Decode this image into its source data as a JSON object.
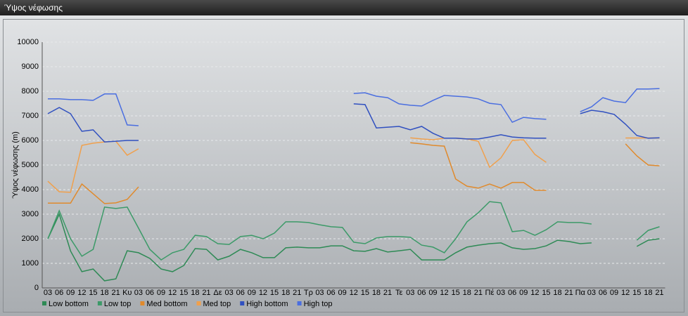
{
  "chart_data": {
    "type": "line",
    "title": "Ύψος νέφωσης",
    "y_label": "Ύψος νέφωσης (m)",
    "categories": [
      "03",
      "06",
      "09",
      "12",
      "15",
      "18",
      "21",
      "Κυ",
      "03",
      "06",
      "09",
      "12",
      "15",
      "18",
      "21",
      "Δε",
      "03",
      "06",
      "09",
      "12",
      "15",
      "18",
      "21",
      "Τρ",
      "03",
      "06",
      "09",
      "12",
      "15",
      "18",
      "21",
      "Τε",
      "03",
      "06",
      "09",
      "12",
      "15",
      "18",
      "21",
      "Πέ",
      "03",
      "06",
      "09",
      "12",
      "15",
      "18",
      "21",
      "Πα",
      "03",
      "06",
      "09",
      "12",
      "15",
      "18",
      "21"
    ],
    "ylim": [
      0,
      10000
    ],
    "yticks": [
      0,
      1000,
      2000,
      3000,
      4000,
      5000,
      6000,
      7000,
      8000,
      9000,
      10000
    ],
    "grid": true,
    "legend": "bottom",
    "series": [
      {
        "name": "Low bottom",
        "color": "#2e8a55",
        "values": [
          2000,
          3000,
          1500,
          660,
          770,
          290,
          370,
          1510,
          1430,
          1200,
          770,
          660,
          910,
          1600,
          1570,
          1140,
          1290,
          1570,
          1430,
          1230,
          1230,
          1630,
          1660,
          1630,
          1630,
          1710,
          1710,
          1510,
          1490,
          1600,
          1460,
          1510,
          1570,
          1140,
          1140,
          1140,
          1430,
          1660,
          1740,
          1800,
          1830,
          1630,
          1570,
          1600,
          1710,
          1940,
          1890,
          1800,
          1830,
          null,
          null,
          null,
          1690,
          1940,
          2000
        ]
      },
      {
        "name": "Low top",
        "color": "#3c9a68",
        "values": [
          2000,
          3140,
          2000,
          1290,
          1570,
          3290,
          3230,
          3290,
          2430,
          1570,
          1140,
          1430,
          1570,
          2140,
          2090,
          1800,
          1770,
          2090,
          2140,
          2000,
          2230,
          2690,
          2690,
          2660,
          2570,
          2490,
          2460,
          1860,
          1800,
          2030,
          2090,
          2090,
          2060,
          1740,
          1660,
          1430,
          2000,
          2690,
          3060,
          3510,
          3460,
          2290,
          2340,
          2140,
          2370,
          2690,
          2660,
          2660,
          2600,
          null,
          null,
          null,
          1940,
          2340,
          2490
        ]
      },
      {
        "name": "Med bottom",
        "color": "#e08a2c",
        "values": [
          3450,
          3450,
          3450,
          4230,
          3830,
          3430,
          3460,
          3600,
          4110,
          null,
          null,
          null,
          null,
          null,
          null,
          null,
          null,
          null,
          null,
          null,
          null,
          null,
          null,
          null,
          null,
          null,
          null,
          null,
          null,
          null,
          null,
          null,
          5910,
          5860,
          5800,
          5770,
          4430,
          4140,
          4060,
          4230,
          4060,
          4290,
          4290,
          3970,
          3970,
          null,
          null,
          null,
          null,
          null,
          null,
          5860,
          5370,
          5000,
          4970
        ]
      },
      {
        "name": "Med top",
        "color": "#f0a04c",
        "values": [
          4340,
          3910,
          3890,
          5800,
          5890,
          5940,
          5970,
          5400,
          5660,
          null,
          null,
          null,
          null,
          null,
          null,
          null,
          null,
          null,
          null,
          null,
          null,
          null,
          null,
          null,
          null,
          null,
          null,
          null,
          null,
          null,
          null,
          null,
          6110,
          6060,
          6030,
          6090,
          6090,
          6060,
          5970,
          4910,
          5290,
          6000,
          6030,
          5430,
          5110,
          null,
          null,
          null,
          null,
          null,
          null,
          6100,
          6100,
          6100,
          6100
        ]
      },
      {
        "name": "High bottom",
        "color": "#3050c0",
        "values": [
          7090,
          7340,
          7090,
          6370,
          6430,
          5940,
          5970,
          6000,
          6000,
          null,
          null,
          null,
          null,
          null,
          null,
          null,
          null,
          null,
          null,
          null,
          null,
          null,
          null,
          null,
          null,
          null,
          null,
          7490,
          7460,
          6510,
          6540,
          6570,
          6430,
          6570,
          6290,
          6090,
          6090,
          6060,
          6060,
          6140,
          6230,
          6140,
          6110,
          6090,
          6090,
          null,
          null,
          7090,
          7230,
          7170,
          7060,
          6660,
          6200,
          6090,
          6110
        ]
      },
      {
        "name": "High top",
        "color": "#4a6ee0",
        "values": [
          7690,
          7690,
          7660,
          7660,
          7630,
          7890,
          7890,
          6630,
          6600,
          null,
          null,
          null,
          null,
          null,
          null,
          null,
          null,
          null,
          null,
          null,
          null,
          null,
          null,
          null,
          null,
          null,
          null,
          7910,
          7940,
          7800,
          7740,
          7490,
          7430,
          7400,
          7630,
          7830,
          7800,
          7770,
          7690,
          7510,
          7460,
          6740,
          6940,
          6890,
          6860,
          null,
          null,
          7170,
          7370,
          7740,
          7600,
          7540,
          8090,
          8090,
          8110
        ]
      }
    ]
  }
}
